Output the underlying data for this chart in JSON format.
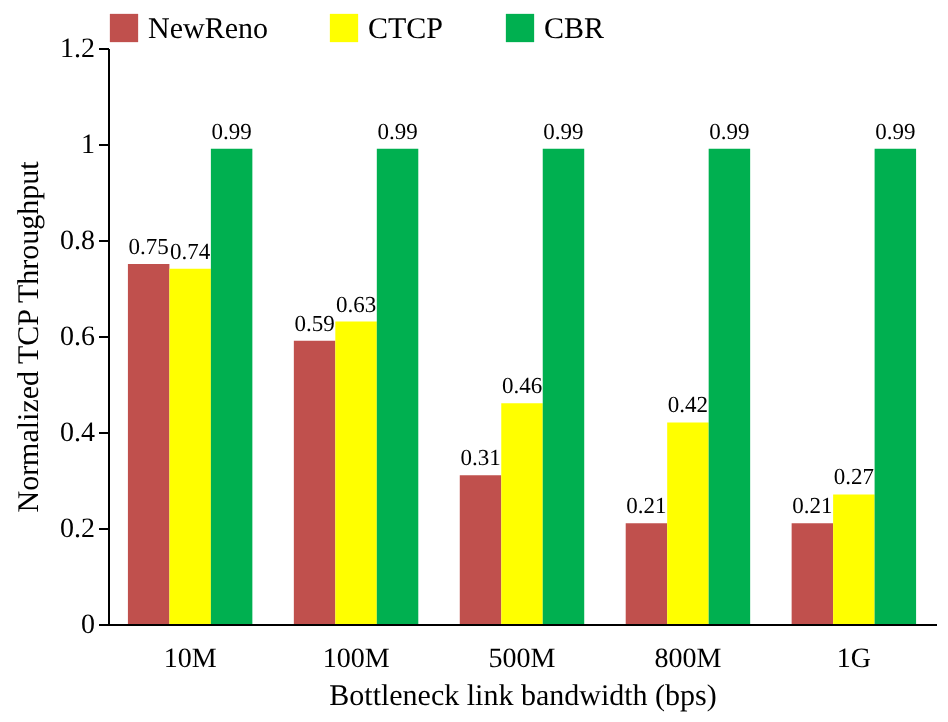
{
  "chart_data": {
    "type": "bar",
    "xlabel": "Bottleneck link bandwidth (bps)",
    "ylabel": "Normalized TCP Throughput",
    "categories": [
      "10M",
      "100M",
      "500M",
      "800M",
      "1G"
    ],
    "series": [
      {
        "name": "NewReno",
        "color": "#c0504d",
        "values": [
          0.75,
          0.59,
          0.31,
          0.21,
          0.21
        ]
      },
      {
        "name": "CTCP",
        "color": "#ffff00",
        "values": [
          0.74,
          0.63,
          0.46,
          0.42,
          0.27
        ]
      },
      {
        "name": "CBR",
        "color": "#00b050",
        "values": [
          0.99,
          0.99,
          0.99,
          0.99,
          0.99
        ]
      }
    ],
    "ylim": [
      0,
      1.2
    ],
    "yticks": [
      0,
      0.2,
      0.4,
      0.6,
      0.8,
      1,
      1.2
    ],
    "grid": false,
    "legend": "top",
    "data_labels": true
  }
}
